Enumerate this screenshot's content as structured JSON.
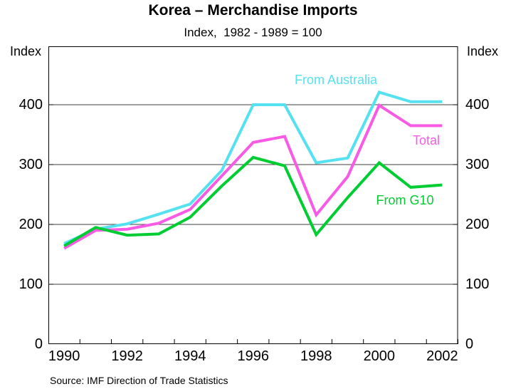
{
  "chart_data": {
    "type": "line",
    "title": "Korea – Merchandise Imports",
    "subtitle": "Index,  1982 - 1989 = 100",
    "ylabel_left": "Index",
    "ylabel_right": "Index",
    "source": "Source: IMF Direction of Trade Statistics",
    "x": [
      1990,
      1991,
      1992,
      1993,
      1994,
      1995,
      1996,
      1997,
      1998,
      1999,
      2000,
      2001,
      2002
    ],
    "xlim": [
      1990,
      2003
    ],
    "ylim": [
      0,
      497
    ],
    "yticks": [
      0,
      100,
      200,
      300,
      400
    ],
    "ytick_labels": [
      "0",
      "100",
      "200",
      "300",
      "400"
    ],
    "xtick_label_years": [
      1990,
      1992,
      1994,
      1996,
      1998,
      2000,
      2002
    ],
    "xtick_labels": [
      "1990",
      "1992",
      "1994",
      "1996",
      "1998",
      "2000",
      "2002"
    ],
    "grid": "horizontal",
    "legend_position": "inline-labels",
    "colors": {
      "grid": "#3f3f3f",
      "axis": "#000000"
    },
    "series": [
      {
        "name": "From Australia",
        "color": "#55E1F0",
        "values": [
          168,
          192,
          201,
          217,
          234,
          290,
          400,
          400,
          303,
          311,
          421,
          405,
          405
        ]
      },
      {
        "name": "Total",
        "color": "#F85AE6",
        "values": [
          160,
          190,
          192,
          202,
          225,
          281,
          337,
          347,
          216,
          280,
          399,
          365,
          365
        ]
      },
      {
        "name": "From G10",
        "color": "#00CD32",
        "values": [
          164,
          195,
          182,
          184,
          212,
          264,
          312,
          298,
          183,
          245,
          303,
          262,
          266
        ]
      }
    ]
  }
}
